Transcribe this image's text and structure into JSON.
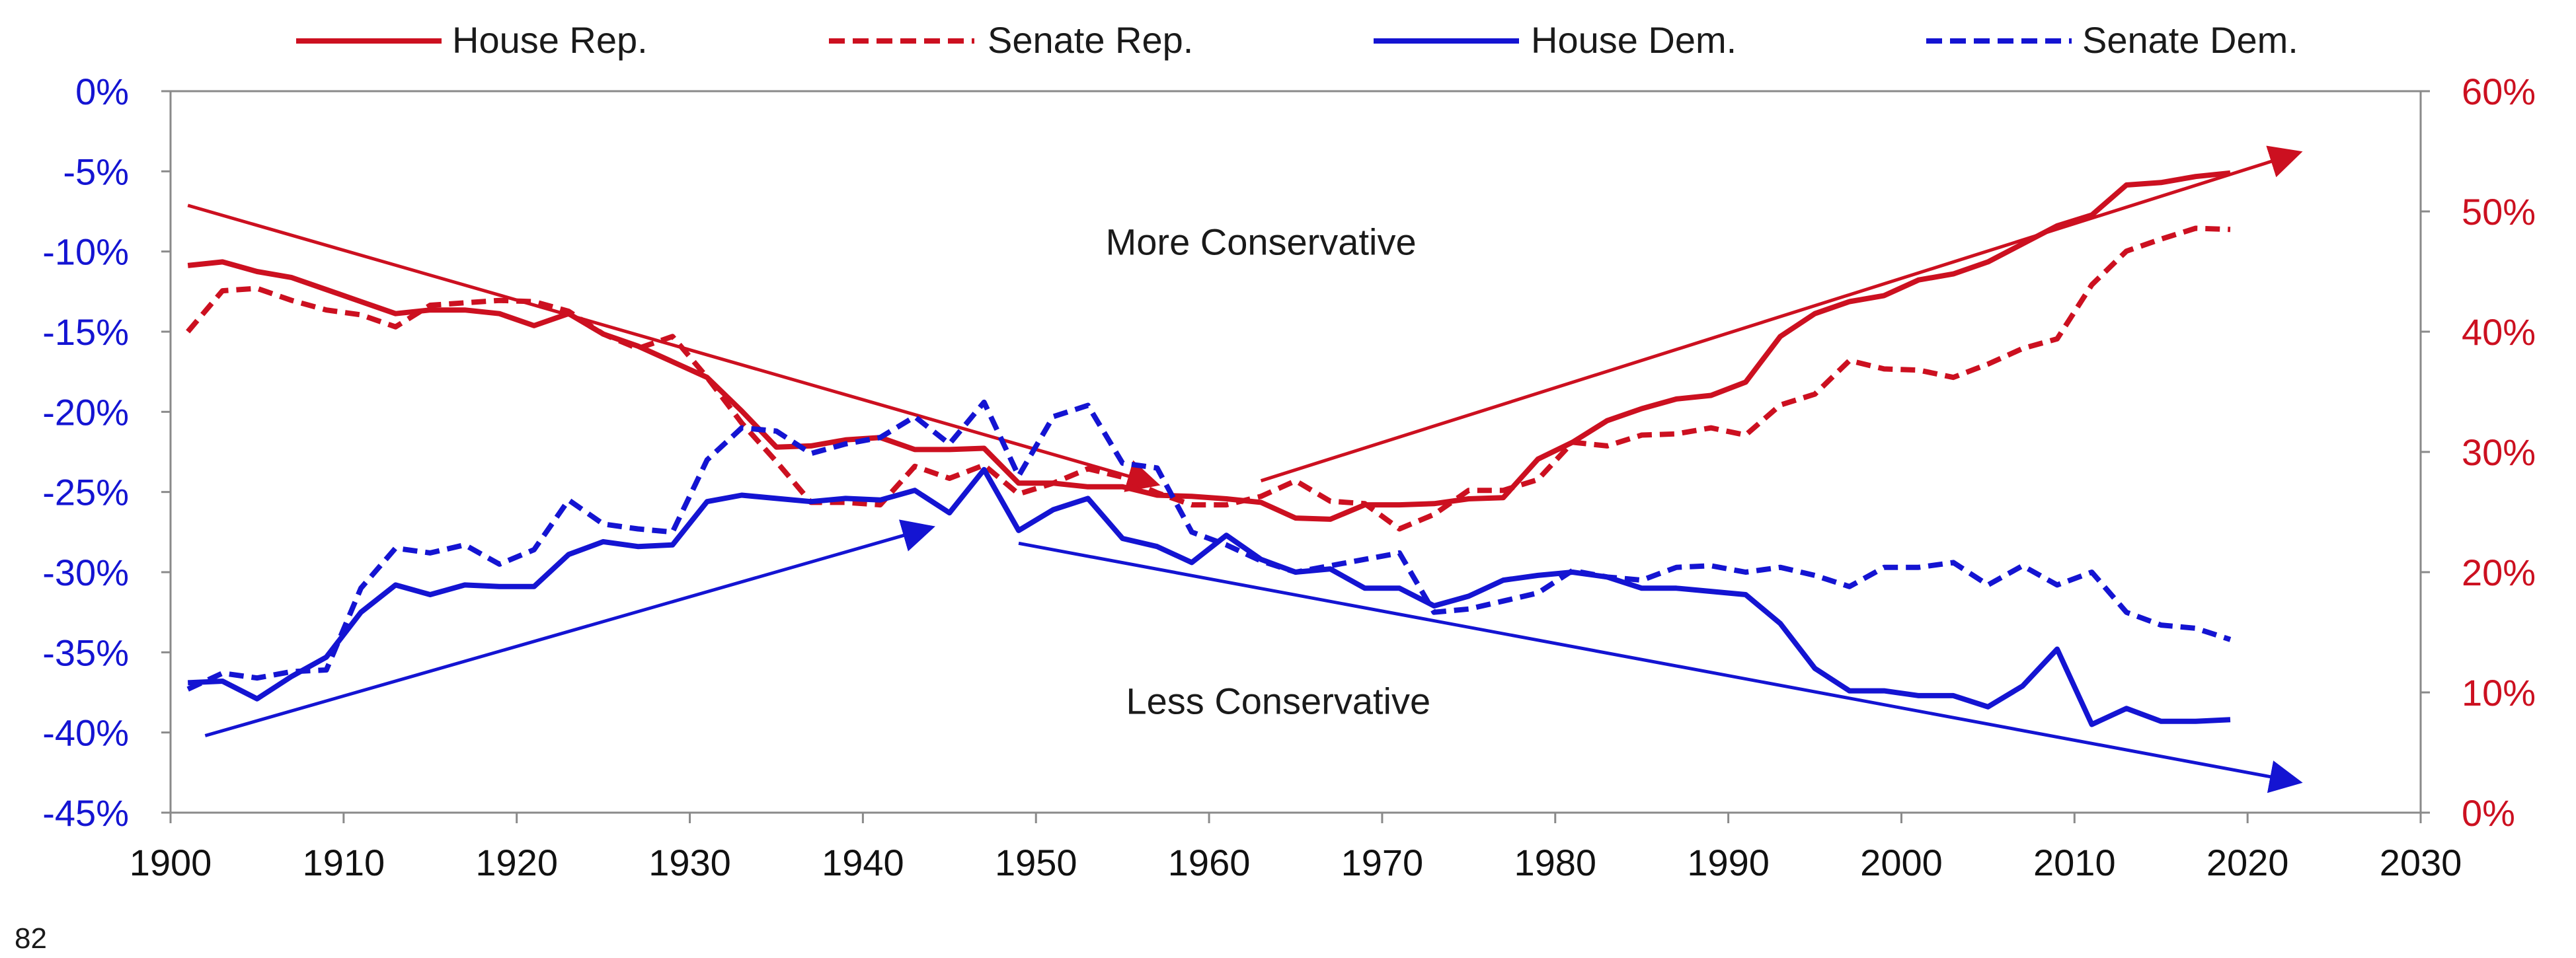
{
  "page_number": "82",
  "chart_data": {
    "type": "line",
    "title": "",
    "xlabel": "",
    "ylabel": "",
    "xlim": [
      1900,
      2030
    ],
    "x_ticks": [
      1900,
      1910,
      1920,
      1930,
      1940,
      1950,
      1960,
      1970,
      1980,
      1990,
      2000,
      2010,
      2020,
      2030
    ],
    "left_axis": {
      "ylim": [
        -45,
        0
      ],
      "ticks": [
        0,
        -5,
        -10,
        -15,
        -20,
        -25,
        -30,
        -35,
        -40,
        -45
      ],
      "tick_labels": [
        "0%",
        "-5%",
        "-10%",
        "-15%",
        "-20%",
        "-25%",
        "-30%",
        "-35%",
        "-40%",
        "-45%"
      ],
      "color": "#1414d2"
    },
    "right_axis": {
      "ylim": [
        0,
        60
      ],
      "ticks": [
        0,
        10,
        20,
        30,
        40,
        50,
        60
      ],
      "tick_labels": [
        "0%",
        "10%",
        "20%",
        "30%",
        "40%",
        "50%",
        "60%"
      ],
      "color": "#cc1020"
    },
    "grid": false,
    "legend_position": "top",
    "series": [
      {
        "name": "House Rep.",
        "axis": "right",
        "color": "#cc1020",
        "dash": "solid",
        "x": [
          1901,
          1903,
          1905,
          1907,
          1909,
          1911,
          1913,
          1915,
          1917,
          1919,
          1921,
          1923,
          1925,
          1927,
          1929,
          1931,
          1933,
          1935,
          1937,
          1939,
          1941,
          1943,
          1945,
          1947,
          1949,
          1951,
          1953,
          1955,
          1957,
          1959,
          1961,
          1963,
          1965,
          1967,
          1969,
          1971,
          1973,
          1975,
          1977,
          1979,
          1981,
          1983,
          1985,
          1987,
          1989,
          1991,
          1993,
          1995,
          1997,
          1999,
          2001,
          2003,
          2005,
          2007,
          2009,
          2011,
          2013,
          2015,
          2017,
          2019
        ],
        "values": [
          45.5,
          45.8,
          45,
          44.5,
          43.5,
          42.5,
          41.5,
          41.8,
          41.8,
          41.5,
          40.5,
          41.5,
          39.8,
          38.8,
          37.5,
          36.2,
          33.4,
          30.4,
          30.5,
          31,
          31.2,
          30.2,
          30.2,
          30.3,
          27.4,
          27.4,
          27.1,
          27.1,
          26.4,
          26.3,
          26.1,
          25.8,
          24.5,
          24.4,
          25.6,
          25.6,
          25.7,
          26.1,
          26.2,
          29.4,
          30.8,
          32.6,
          33.6,
          34.4,
          34.7,
          35.8,
          39.6,
          41.5,
          42.5,
          43,
          44.3,
          44.8,
          45.8,
          47.3,
          48.8,
          49.7,
          52.2,
          52.4,
          52.9,
          53.2
        ]
      },
      {
        "name": "Senate Rep.",
        "axis": "right",
        "color": "#cc1020",
        "dash": "dashed",
        "x": [
          1901,
          1903,
          1905,
          1907,
          1909,
          1911,
          1913,
          1915,
          1917,
          1919,
          1921,
          1923,
          1925,
          1927,
          1929,
          1931,
          1933,
          1935,
          1937,
          1939,
          1941,
          1943,
          1945,
          1947,
          1949,
          1951,
          1953,
          1955,
          1957,
          1959,
          1961,
          1963,
          1965,
          1967,
          1969,
          1971,
          1973,
          1975,
          1977,
          1979,
          1981,
          1983,
          1985,
          1987,
          1989,
          1991,
          1993,
          1995,
          1997,
          1999,
          2001,
          2003,
          2005,
          2007,
          2009,
          2011,
          2013,
          2015,
          2017,
          2019
        ],
        "values": [
          40,
          43.4,
          43.6,
          42.6,
          41.8,
          41.4,
          40.4,
          42.2,
          42.4,
          42.6,
          42.5,
          41.7,
          39.8,
          38.6,
          39.6,
          36.2,
          32.4,
          29.2,
          25.8,
          25.8,
          25.6,
          28.8,
          27.8,
          28.9,
          26.5,
          27.4,
          28.6,
          27.9,
          26.6,
          25.6,
          25.6,
          26.3,
          27.6,
          25.9,
          25.7,
          23.6,
          24.8,
          26.8,
          26.8,
          27.7,
          30.8,
          30.5,
          31.4,
          31.5,
          32,
          31.4,
          33.9,
          34.8,
          37.6,
          36.9,
          36.8,
          36.2,
          37.3,
          38.6,
          39.4,
          43.9,
          46.7,
          47.7,
          48.6,
          48.5
        ]
      },
      {
        "name": "House Dem.",
        "axis": "left",
        "color": "#1414d2",
        "dash": "solid",
        "x": [
          1901,
          1903,
          1905,
          1907,
          1909,
          1911,
          1913,
          1915,
          1917,
          1919,
          1921,
          1923,
          1925,
          1927,
          1929,
          1931,
          1933,
          1935,
          1937,
          1939,
          1941,
          1943,
          1945,
          1947,
          1949,
          1951,
          1953,
          1955,
          1957,
          1959,
          1961,
          1963,
          1965,
          1967,
          1969,
          1971,
          1973,
          1975,
          1977,
          1979,
          1981,
          1983,
          1985,
          1987,
          1989,
          1991,
          1993,
          1995,
          1997,
          1999,
          2001,
          2003,
          2005,
          2007,
          2009,
          2011,
          2013,
          2015,
          2017,
          2019
        ],
        "values": [
          -36.9,
          -36.8,
          -37.9,
          -36.5,
          -35.3,
          -32.5,
          -30.8,
          -31.4,
          -30.8,
          -30.9,
          -30.9,
          -28.9,
          -28.1,
          -28.4,
          -28.3,
          -25.6,
          -25.2,
          -25.4,
          -25.6,
          -25.4,
          -25.5,
          -24.9,
          -26.3,
          -23.6,
          -27.4,
          -26.1,
          -25.4,
          -27.9,
          -28.4,
          -29.4,
          -27.7,
          -29.2,
          -30,
          -29.8,
          -31,
          -31,
          -32.1,
          -31.5,
          -30.5,
          -30.2,
          -30,
          -30.3,
          -31,
          -31,
          -31.2,
          -31.4,
          -33.2,
          -36,
          -37.4,
          -37.4,
          -37.7,
          -37.7,
          -38.4,
          -37.1,
          -34.8,
          -39.5,
          -38.5,
          -39.3,
          -39.3,
          -39.2
        ]
      },
      {
        "name": "Senate Dem.",
        "axis": "left",
        "color": "#1414d2",
        "dash": "dashed",
        "x": [
          1901,
          1903,
          1905,
          1907,
          1909,
          1911,
          1913,
          1915,
          1917,
          1919,
          1921,
          1923,
          1925,
          1927,
          1929,
          1931,
          1933,
          1935,
          1937,
          1939,
          1941,
          1943,
          1945,
          1947,
          1949,
          1951,
          1953,
          1955,
          1957,
          1959,
          1961,
          1963,
          1965,
          1967,
          1969,
          1971,
          1973,
          1975,
          1977,
          1979,
          1981,
          1983,
          1985,
          1987,
          1989,
          1991,
          1993,
          1995,
          1997,
          1999,
          2001,
          2003,
          2005,
          2007,
          2009,
          2011,
          2013,
          2015,
          2017,
          2019
        ],
        "values": [
          -37.3,
          -36.3,
          -36.6,
          -36.2,
          -36.1,
          -31,
          -28.5,
          -28.8,
          -28.3,
          -29.5,
          -28.6,
          -25.5,
          -27,
          -27.3,
          -27.5,
          -23,
          -21,
          -21.2,
          -22.6,
          -22,
          -21.6,
          -20.3,
          -22,
          -19.4,
          -24,
          -20.3,
          -19.6,
          -23.2,
          -23.5,
          -27.5,
          -28.3,
          -29.3,
          -30,
          -29.6,
          -29.2,
          -28.8,
          -32.5,
          -32.3,
          -31.8,
          -31.3,
          -29.9,
          -30.3,
          -30.5,
          -29.7,
          -29.6,
          -30,
          -29.7,
          -30.2,
          -30.9,
          -29.7,
          -29.7,
          -29.4,
          -30.8,
          -29.6,
          -30.8,
          -30,
          -32.5,
          -33.3,
          -33.5,
          -34.2
        ]
      }
    ],
    "annotations": [
      {
        "text": "More Conservative",
        "x": 1963,
        "axis": "right",
        "y": 47.5
      },
      {
        "text": "Less Conservative",
        "x": 1964,
        "axis": "right",
        "y": 9.3
      }
    ],
    "trend_arrows": [
      {
        "color": "#cc1020",
        "axis": "right",
        "from": [
          1901,
          50.5
        ],
        "to": [
          1957,
          27.3
        ]
      },
      {
        "color": "#cc1020",
        "axis": "right",
        "from": [
          1963,
          27.6
        ],
        "to": [
          2023,
          54.9
        ]
      },
      {
        "color": "#1414d2",
        "axis": "left",
        "from": [
          1902,
          -40.2
        ],
        "to": [
          1944,
          -27.2
        ]
      },
      {
        "color": "#1414d2",
        "axis": "left",
        "from": [
          1949,
          -28.2
        ],
        "to": [
          2023,
          -43.1
        ]
      }
    ]
  }
}
